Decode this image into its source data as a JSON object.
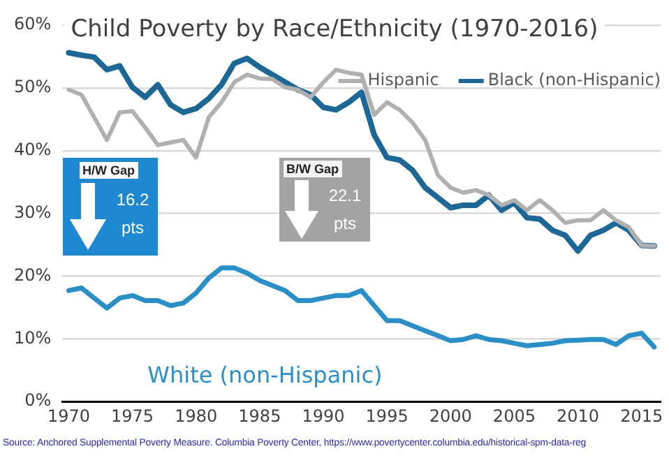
{
  "chart_data": {
    "type": "line",
    "title": "Child Poverty by Race/Ethnicity (1970-2016)",
    "x": [
      1970,
      1971,
      1972,
      1973,
      1974,
      1975,
      1976,
      1977,
      1978,
      1979,
      1980,
      1981,
      1982,
      1983,
      1984,
      1985,
      1986,
      1987,
      1988,
      1989,
      1990,
      1991,
      1992,
      1993,
      1994,
      1995,
      1996,
      1997,
      1998,
      1999,
      2000,
      2001,
      2002,
      2003,
      2004,
      2005,
      2006,
      2007,
      2008,
      2009,
      2010,
      2011,
      2012,
      2013,
      2014,
      2015,
      2016
    ],
    "series": [
      {
        "name": "Hispanic",
        "color": "#b0b0b0",
        "values": [
          49.7,
          48.9,
          45.3,
          41.7,
          46.1,
          46.3,
          43.7,
          40.9,
          41.3,
          41.7,
          38.9,
          45.3,
          47.7,
          50.9,
          52.1,
          51.5,
          51.4,
          50.1,
          49.7,
          48.5,
          50.9,
          52.9,
          52.4,
          52.1,
          45.7,
          47.7,
          46.5,
          44.5,
          41.7,
          36.1,
          34.1,
          33.3,
          33.7,
          32.9,
          31.3,
          32.1,
          30.5,
          32.1,
          30.5,
          28.5,
          28.9,
          28.9,
          30.5,
          28.9,
          27.8,
          24.9,
          24.8
        ]
      },
      {
        "name": "Black (non-Hispanic)",
        "color": "#1d6796",
        "values": [
          55.6,
          55.2,
          54.9,
          52.9,
          53.5,
          50.1,
          48.5,
          50.5,
          47.3,
          46.1,
          46.7,
          48.3,
          50.5,
          53.9,
          54.7,
          53.3,
          52.1,
          50.9,
          49.7,
          48.9,
          46.9,
          46.5,
          47.7,
          49.3,
          42.5,
          38.9,
          38.5,
          36.9,
          34.1,
          32.5,
          30.9,
          31.3,
          31.3,
          32.9,
          30.5,
          31.7,
          29.3,
          29.1,
          27.3,
          26.5,
          24.0,
          26.5,
          27.3,
          28.5,
          27.3,
          24.9,
          24.8
        ]
      },
      {
        "name": "White (non-Hispanic)",
        "color": "#2b8fc7",
        "values": [
          17.7,
          18.1,
          16.5,
          14.9,
          16.5,
          16.9,
          16.1,
          16.1,
          15.3,
          15.7,
          17.3,
          19.7,
          21.3,
          21.3,
          20.5,
          19.3,
          18.5,
          17.7,
          16.1,
          16.1,
          16.5,
          16.9,
          16.9,
          17.7,
          15.3,
          12.9,
          12.9,
          12.1,
          11.3,
          10.5,
          9.7,
          9.9,
          10.5,
          9.9,
          9.7,
          9.3,
          8.9,
          9.1,
          9.3,
          9.7,
          9.8,
          9.9,
          9.9,
          9.1,
          10.5,
          10.9,
          8.7
        ]
      }
    ],
    "xlim": [
      1969.5,
      2016.5
    ],
    "xticks": [
      1970,
      1975,
      1980,
      1985,
      1990,
      1995,
      2000,
      2005,
      2010,
      2015
    ],
    "ylim": [
      0,
      60
    ],
    "yticks": [
      {
        "value": 0,
        "label": "0%"
      },
      {
        "value": 10,
        "label": "10%"
      },
      {
        "value": 20,
        "label": "20%"
      },
      {
        "value": 30,
        "label": "30%"
      },
      {
        "value": 40,
        "label": "40%"
      },
      {
        "value": 50,
        "label": "50%"
      },
      {
        "value": 60,
        "label": "60%"
      }
    ],
    "grid": "y",
    "legend": "top right",
    "marker": "none",
    "line_style": "solid",
    "annotations": [
      "H/W Gap",
      "16.2 pts",
      "B/W Gap",
      "22.1 pts",
      "Source: Anchored Supplemental Poverty Measure. Columbia Poverty Center, https://www.povertycenter.columbia.edu/historical-spm-data-reg"
    ]
  }
}
